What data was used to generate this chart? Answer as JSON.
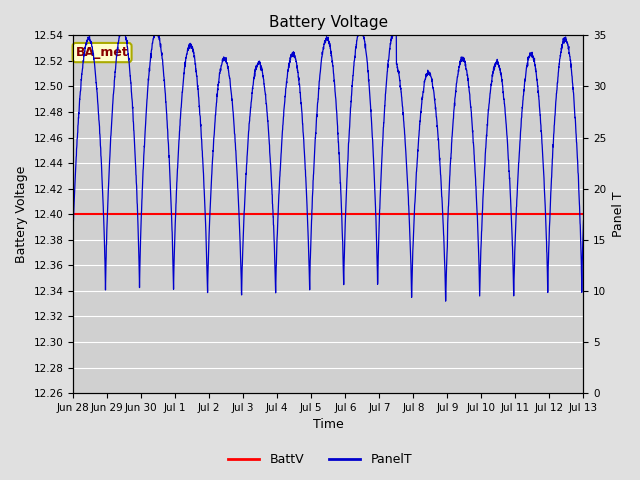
{
  "title": "Battery Voltage",
  "xlabel": "Time",
  "ylabel_left": "Battery Voltage",
  "ylabel_right": "Panel T",
  "ylim_left": [
    12.26,
    12.54
  ],
  "ylim_right": [
    0,
    35
  ],
  "battv_value": 12.4,
  "battv_color": "#ff0000",
  "panelt_color": "#0000cc",
  "bg_color": "#e0e0e0",
  "plot_bg_color": "#d0d0d0",
  "grid_color": "#ffffff",
  "legend_labels": [
    "BattV",
    "PanelT"
  ],
  "watermark_text": "BA_met",
  "watermark_bg": "#ffffcc",
  "watermark_border": "#aaaa00",
  "watermark_text_color": "#880000",
  "xtick_labels": [
    "Jun 28",
    "Jun 29",
    "Jun 30",
    "Jul 1",
    "Jul 2",
    "Jul 3",
    "Jul 4",
    "Jul 5",
    "Jul 6",
    "Jul 7",
    "Jul 8",
    "Jul 9",
    "Jul 10",
    "Jul 11",
    "Jul 12",
    "Jul 13"
  ],
  "ytick_left": [
    12.26,
    12.28,
    12.3,
    12.32,
    12.34,
    12.36,
    12.38,
    12.4,
    12.42,
    12.44,
    12.46,
    12.48,
    12.5,
    12.52,
    12.54
  ],
  "ytick_right": [
    0,
    5,
    10,
    15,
    20,
    25,
    30,
    35
  ],
  "total_days": 15,
  "panelt_min": 9.0,
  "panelt_max": 35.0
}
